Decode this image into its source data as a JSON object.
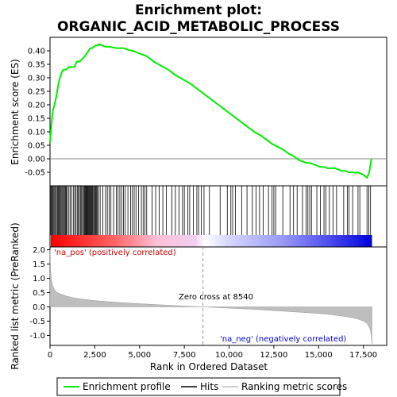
{
  "chart_data": {
    "type": "line",
    "title_lines": [
      "Enrichment plot:",
      "ORGANIC_ACID_METABOLIC_PROCESS"
    ],
    "panels": {
      "enrichment": {
        "ylabel": "Enrichment score (ES)",
        "ylim": [
          -0.1,
          0.45
        ],
        "yticks": [
          -0.05,
          0.0,
          0.05,
          0.1,
          0.15,
          0.2,
          0.25,
          0.3,
          0.35,
          0.4
        ],
        "ytick_labels": [
          "-0.05",
          "0.00",
          "0.05",
          "0.10",
          "0.15",
          "0.20",
          "0.25",
          "0.30",
          "0.35",
          "0.40"
        ],
        "series": {
          "name": "Enrichment profile",
          "color": "#00ee00",
          "x": [
            0,
            80,
            160,
            250,
            350,
            450,
            550,
            650,
            750,
            900,
            1050,
            1200,
            1350,
            1500,
            1650,
            1800,
            1950,
            2050,
            2150,
            2250,
            2350,
            2450,
            2550,
            2650,
            2750,
            2900,
            3100,
            3300,
            3500,
            3700,
            3900,
            4100,
            4300,
            4600,
            5000,
            5400,
            5800,
            6200,
            6600,
            7000,
            7400,
            7800,
            8200,
            8600,
            9000,
            9400,
            9800,
            10200,
            10600,
            11000,
            11400,
            11800,
            12100,
            12400,
            12700,
            13000,
            13300,
            13600,
            13900,
            14100,
            14300,
            14500,
            14700,
            14900,
            15100,
            15300,
            15500,
            15700,
            15900,
            16100,
            16300,
            16500,
            16700,
            16900,
            17050,
            17200,
            17350,
            17500,
            17600,
            17700,
            17800,
            17850,
            17900,
            17950
          ],
          "y": [
            0.06,
            0.13,
            0.18,
            0.2,
            0.23,
            0.27,
            0.3,
            0.32,
            0.33,
            0.33,
            0.34,
            0.34,
            0.34,
            0.36,
            0.36,
            0.37,
            0.38,
            0.39,
            0.4,
            0.41,
            0.41,
            0.415,
            0.42,
            0.42,
            0.425,
            0.42,
            0.415,
            0.415,
            0.413,
            0.41,
            0.41,
            0.41,
            0.405,
            0.4,
            0.39,
            0.38,
            0.36,
            0.345,
            0.33,
            0.31,
            0.295,
            0.28,
            0.26,
            0.24,
            0.22,
            0.2,
            0.18,
            0.16,
            0.14,
            0.12,
            0.1,
            0.085,
            0.07,
            0.055,
            0.045,
            0.035,
            0.02,
            0.01,
            -0.005,
            -0.01,
            -0.015,
            -0.015,
            -0.02,
            -0.025,
            -0.03,
            -0.03,
            -0.035,
            -0.035,
            -0.035,
            -0.04,
            -0.045,
            -0.045,
            -0.05,
            -0.05,
            -0.052,
            -0.05,
            -0.055,
            -0.06,
            -0.065,
            -0.07,
            -0.055,
            -0.04,
            -0.02,
            0.0
          ]
        }
      },
      "ranked": {
        "ylabel": "Ranked list metric (PreRanked)",
        "ylim": [
          -1.35,
          2.1
        ],
        "yticks": [
          -1.0,
          -0.5,
          0.0,
          0.5,
          1.0,
          1.5,
          2.0
        ],
        "ytick_labels": [
          "-1.0",
          "-0.5",
          "0.0",
          "0.5",
          "1.0",
          "1.5",
          "2.0"
        ],
        "profile": {
          "name": "Ranking metric scores",
          "color": "#bebebe",
          "x": [
            0,
            30,
            80,
            150,
            250,
            400,
            600,
            900,
            1300,
            1800,
            2500,
            3500,
            5000,
            6500,
            7500,
            8540,
            9500,
            10500,
            11500,
            12500,
            13500,
            14500,
            15500,
            16300,
            16800,
            17200,
            17500,
            17700,
            17800,
            17880,
            17940,
            17980
          ],
          "y": [
            2.0,
            1.3,
            0.95,
            0.75,
            0.6,
            0.5,
            0.45,
            0.38,
            0.32,
            0.27,
            0.22,
            0.17,
            0.11,
            0.06,
            0.03,
            0.0,
            -0.03,
            -0.06,
            -0.09,
            -0.13,
            -0.17,
            -0.21,
            -0.26,
            -0.32,
            -0.37,
            -0.43,
            -0.5,
            -0.58,
            -0.68,
            -0.8,
            -1.0,
            -1.3
          ]
        },
        "zero_cross_label": "Zero cross at 8540",
        "zero_cross_x": 8540,
        "pos_label": "'na_pos' (positively correlated)",
        "neg_label": "'na_neg' (negatively correlated)",
        "pos_color": "#ff0000",
        "neg_color": "#0000ff"
      },
      "hits": {
        "positions": [
          20,
          60,
          110,
          160,
          210,
          260,
          310,
          360,
          420,
          470,
          520,
          560,
          610,
          660,
          710,
          760,
          810,
          860,
          910,
          960,
          1050,
          1120,
          1200,
          1300,
          1380,
          1450,
          1520,
          1580,
          1640,
          1700,
          1760,
          1820,
          1870,
          1920,
          1960,
          2000,
          2040,
          2080,
          2120,
          2160,
          2200,
          2240,
          2280,
          2320,
          2360,
          2400,
          2450,
          2500,
          2550,
          2600,
          2650,
          2700,
          2800,
          2950,
          3100,
          3200,
          3300,
          3400,
          3550,
          3700,
          3800,
          3900,
          4000,
          4100,
          4200,
          4350,
          4500,
          4600,
          4700,
          4800,
          4950,
          5100,
          5200,
          5300,
          5400,
          5700,
          5900,
          6100,
          6300,
          6500,
          6800,
          7000,
          7200,
          7400,
          7500,
          7700,
          7800,
          8000,
          8200,
          8300,
          8450,
          8600,
          8900,
          9500,
          9900,
          10100,
          10200,
          10350,
          10700,
          11000,
          11300,
          11500,
          11700,
          11900,
          12200,
          12400,
          12500,
          12600,
          13000,
          13400,
          13600,
          13800,
          14100,
          14300,
          14400,
          14500,
          14600,
          14900,
          15100,
          15300,
          15400,
          15600,
          15800,
          16000,
          16400,
          16600,
          16700,
          16900,
          17200,
          17300,
          17700,
          17800,
          17900
        ]
      }
    },
    "xlabel": "Rank in Ordered Dataset",
    "xlim": [
      0,
      18800
    ],
    "xticks": [
      0,
      2500,
      5000,
      7500,
      10000,
      12500,
      15000,
      17500
    ],
    "xtick_labels": [
      "0",
      "2,500",
      "5,000",
      "7,500",
      "10,000",
      "12,500",
      "15,000",
      "17,500"
    ],
    "n_genes": 17980,
    "legend": {
      "entries": [
        {
          "label": "Enrichment profile",
          "color": "#00ee00",
          "style": "line"
        },
        {
          "label": "Hits",
          "color": "#000000",
          "style": "line"
        },
        {
          "label": "Ranking metric scores",
          "color": "#bebebe",
          "style": "line"
        }
      ],
      "placement": "bottom"
    }
  }
}
